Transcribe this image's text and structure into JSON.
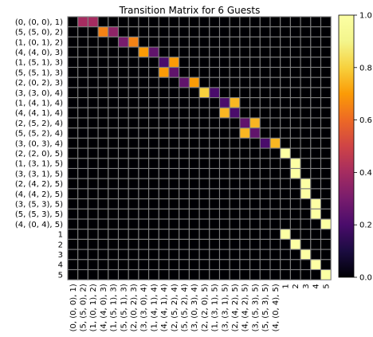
{
  "chart_data": {
    "type": "heatmap",
    "title": "Transition Matrix for 6 Guests",
    "colormap": "inferno",
    "grid": true,
    "grid_color": "#808080",
    "colorbar": {
      "min": 0.0,
      "max": 1.0,
      "ticks": [
        "0.0",
        "0.2",
        "0.4",
        "0.6",
        "0.8",
        "1.0"
      ],
      "tick_values": [
        0,
        0.2,
        0.4,
        0.6,
        0.8,
        1.0
      ],
      "position": "right"
    },
    "row_labels": [
      "(0, (0, 0), 1)",
      "(5, (5, 0), 2)",
      "(1, (0, 1), 2)",
      "(4, (4, 0), 3)",
      "(1, (5, 1), 3)",
      "(5, (5, 1), 3)",
      "(2, (0, 2), 3)",
      "(3, (3, 0), 4)",
      "(1, (4, 1), 4)",
      "(4, (4, 1), 4)",
      "(2, (5, 2), 4)",
      "(5, (5, 2), 4)",
      "(3, (0, 3), 4)",
      "(2, (2, 0), 5)",
      "(1, (3, 1), 5)",
      "(3, (3, 1), 5)",
      "(2, (4, 2), 5)",
      "(4, (4, 2), 5)",
      "(3, (5, 3), 5)",
      "(5, (5, 3), 5)",
      "(4, (0, 4), 5)",
      "1",
      "2",
      "3",
      "4",
      "5"
    ],
    "col_labels": [
      "(0, (0, 0), 1)",
      "(5, (5, 0), 2)",
      "(1, (0, 1), 2)",
      "(4, (4, 0), 3)",
      "(1, (5, 1), 3)",
      "(5, (5, 1), 3)",
      "(2, (0, 2), 3)",
      "(3, (3, 0), 4)",
      "(1, (4, 1), 4)",
      "(4, (4, 1), 4)",
      "(2, (5, 2), 4)",
      "(5, (5, 2), 4)",
      "(3, (0, 3), 4)",
      "(2, (2, 0), 5)",
      "(1, (3, 1), 5)",
      "(3, (3, 1), 5)",
      "(2, (4, 2), 5)",
      "(4, (4, 2), 5)",
      "(3, (5, 3), 5)",
      "(5, (5, 3), 5)",
      "(4, (0, 4), 5)",
      "1",
      "2",
      "3",
      "4",
      "5"
    ],
    "cells": [
      {
        "row": 0,
        "col": 1,
        "value": 0.4
      },
      {
        "row": 0,
        "col": 2,
        "value": 0.4
      },
      {
        "row": 1,
        "col": 3,
        "value": 0.65
      },
      {
        "row": 1,
        "col": 4,
        "value": 0.35
      },
      {
        "row": 2,
        "col": 5,
        "value": 0.3
      },
      {
        "row": 2,
        "col": 6,
        "value": 0.65
      },
      {
        "row": 3,
        "col": 7,
        "value": 0.7
      },
      {
        "row": 3,
        "col": 8,
        "value": 0.25
      },
      {
        "row": 4,
        "col": 9,
        "value": 0.2
      },
      {
        "row": 4,
        "col": 10,
        "value": 0.7
      },
      {
        "row": 5,
        "col": 9,
        "value": 0.7
      },
      {
        "row": 5,
        "col": 10,
        "value": 0.25
      },
      {
        "row": 6,
        "col": 11,
        "value": 0.25
      },
      {
        "row": 6,
        "col": 12,
        "value": 0.7
      },
      {
        "row": 7,
        "col": 13,
        "value": 0.8
      },
      {
        "row": 7,
        "col": 14,
        "value": 0.2
      },
      {
        "row": 8,
        "col": 15,
        "value": 0.2
      },
      {
        "row": 8,
        "col": 16,
        "value": 0.75
      },
      {
        "row": 9,
        "col": 15,
        "value": 0.75
      },
      {
        "row": 9,
        "col": 16,
        "value": 0.2
      },
      {
        "row": 10,
        "col": 17,
        "value": 0.25
      },
      {
        "row": 10,
        "col": 18,
        "value": 0.75
      },
      {
        "row": 11,
        "col": 17,
        "value": 0.75
      },
      {
        "row": 11,
        "col": 18,
        "value": 0.25
      },
      {
        "row": 12,
        "col": 19,
        "value": 0.2
      },
      {
        "row": 12,
        "col": 20,
        "value": 0.75
      },
      {
        "row": 13,
        "col": 21,
        "value": 1.0
      },
      {
        "row": 14,
        "col": 22,
        "value": 1.0
      },
      {
        "row": 15,
        "col": 22,
        "value": 1.0
      },
      {
        "row": 16,
        "col": 23,
        "value": 1.0
      },
      {
        "row": 17,
        "col": 23,
        "value": 1.0
      },
      {
        "row": 18,
        "col": 24,
        "value": 1.0
      },
      {
        "row": 19,
        "col": 24,
        "value": 1.0
      },
      {
        "row": 20,
        "col": 25,
        "value": 1.0
      },
      {
        "row": 21,
        "col": 21,
        "value": 1.0
      },
      {
        "row": 22,
        "col": 22,
        "value": 1.0
      },
      {
        "row": 23,
        "col": 23,
        "value": 1.0
      },
      {
        "row": 24,
        "col": 24,
        "value": 1.0
      },
      {
        "row": 25,
        "col": 25,
        "value": 1.0
      }
    ]
  }
}
